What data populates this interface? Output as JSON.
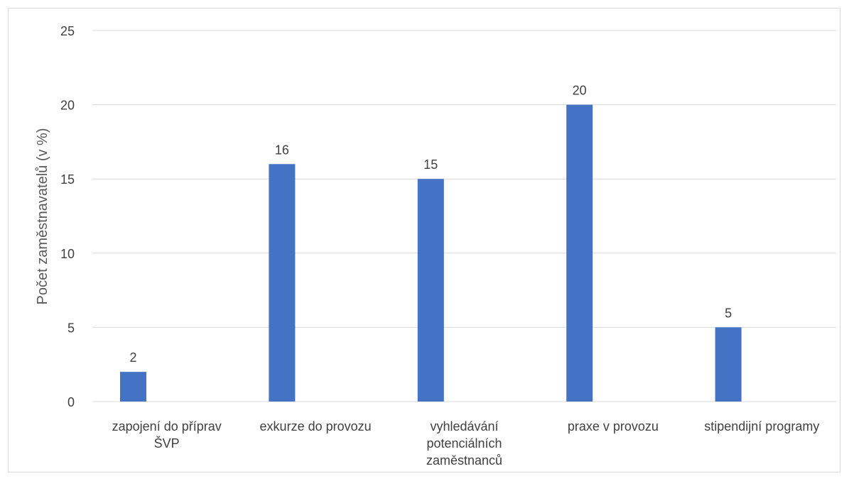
{
  "chart_data": {
    "type": "bar",
    "title": "",
    "xlabel": "",
    "ylabel": "Počet zaměstnavatelů (v %)",
    "ylim": [
      0,
      25
    ],
    "yticks": [
      0,
      5,
      10,
      15,
      20,
      25
    ],
    "grid": true,
    "legend": "none",
    "categories": [
      [
        "zapojení do příprav",
        "ŠVP"
      ],
      [
        "exkurze do provozu"
      ],
      [
        "vyhledávání",
        "potenciálních",
        "zaměstnanců"
      ],
      [
        "praxe v provozu"
      ],
      [
        "stipendijní programy"
      ]
    ],
    "values": [
      2,
      16,
      15,
      20,
      5
    ],
    "data_labels": [
      "2",
      "16",
      "15",
      "20",
      "5"
    ],
    "colors": {
      "bar": "#4472C4",
      "grid": "#d9d9d9",
      "text": "#404040"
    }
  }
}
